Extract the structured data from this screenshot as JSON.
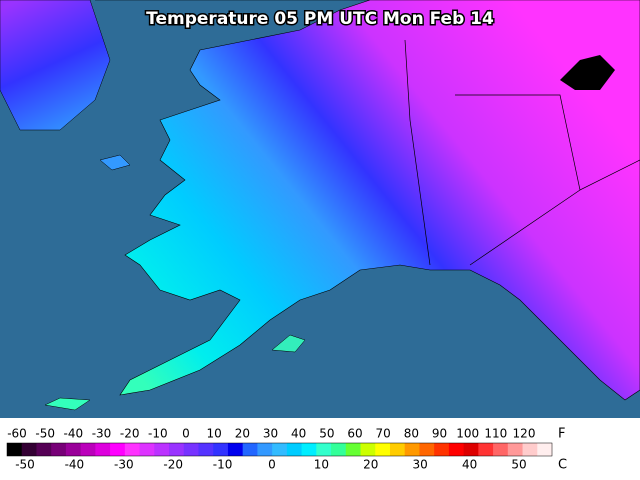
{
  "title": "Temperature 05 PM UTC Mon Feb 14",
  "fahrenheit": {
    "unit": "F",
    "labels": [
      -60,
      -50,
      -40,
      -30,
      -20,
      -10,
      0,
      10,
      20,
      30,
      40,
      50,
      60,
      70,
      80,
      90,
      100,
      110,
      120
    ]
  },
  "celsius": {
    "unit": "C",
    "labels": [
      -50,
      -40,
      -30,
      -20,
      -10,
      0,
      10,
      20,
      30,
      40,
      50
    ]
  },
  "colorbar": [
    "#000000",
    "#330033",
    "#550055",
    "#770077",
    "#990099",
    "#bb00bb",
    "#dd00dd",
    "#ff00ff",
    "#ff33ff",
    "#dd33ff",
    "#bb33ff",
    "#9933ff",
    "#7733ff",
    "#5533ff",
    "#3333ff",
    "#0000ee",
    "#2266ff",
    "#3399ff",
    "#33bbff",
    "#00ccff",
    "#00eeff",
    "#33ffcc",
    "#33ff99",
    "#66ff33",
    "#ccff00",
    "#ffff00",
    "#ffcc00",
    "#ff9900",
    "#ff6600",
    "#ff3300",
    "#ff0000",
    "#dd0000",
    "#ff3333",
    "#ff6666",
    "#ff9999",
    "#ffcccc",
    "#ffeeee"
  ]
}
